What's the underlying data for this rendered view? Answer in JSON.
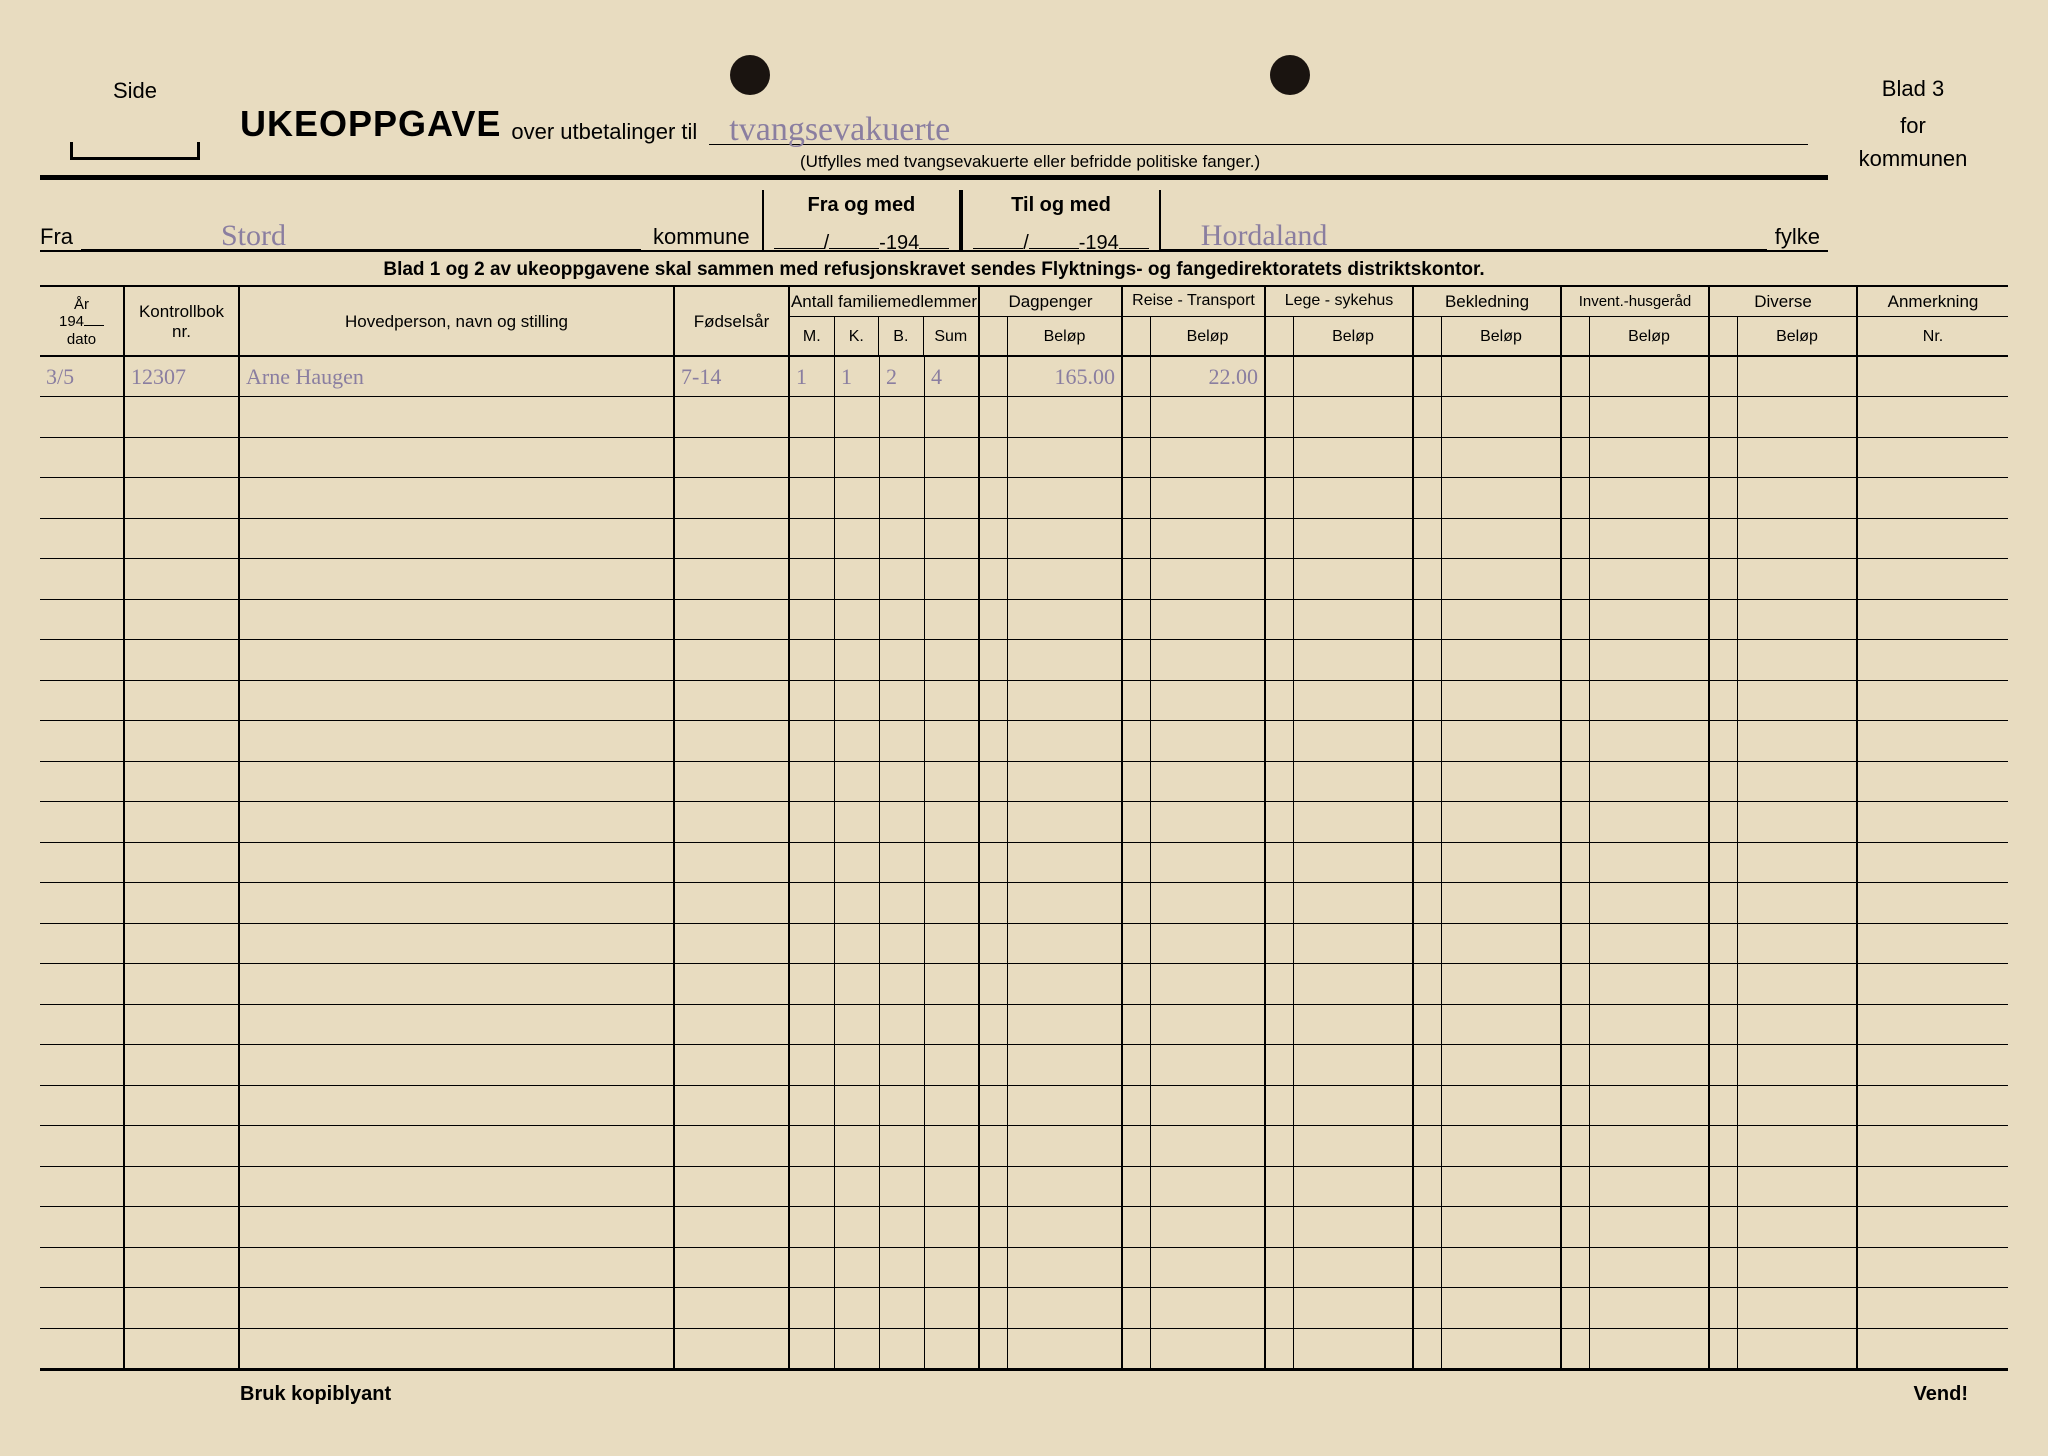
{
  "page": {
    "background_color": "#e8dcc0",
    "handwriting_color": "#8a7ea0",
    "line_color": "#000000"
  },
  "corners": {
    "side_label": "Side",
    "blad_line1": "Blad 3",
    "blad_line2": "for",
    "blad_line3": "kommunen"
  },
  "title": {
    "bold": "UKEOPPGAVE",
    "rest": "over utbetalinger til",
    "handwritten": "tvangsevakuerte",
    "sub_instruction": "(Utfylles med tvangsevakuerte eller befridde politiske fanger.)"
  },
  "meta": {
    "fra_label": "Fra",
    "fra_value": "Stord",
    "kommune_label": "kommune",
    "fra_og_med": "Fra og med",
    "til_og_med": "Til og med",
    "date_template_prefix": "-194",
    "fylke_value": "Hordaland",
    "fylke_label": "fylke"
  },
  "instruction_band": "Blad 1 og 2 av ukeoppgavene skal sammen med refusjonskravet sendes Flyktnings- og fangedirektoratets distriktskontor.",
  "columns": {
    "ar": {
      "l1": "År",
      "l2": "194",
      "l3": "dato"
    },
    "kontrollbok": {
      "l1": "Kontrollbok",
      "l2": "nr."
    },
    "hovedperson": "Hovedperson, navn og stilling",
    "fodselsar": "Fødselsår",
    "familie": {
      "group": "Antall familiemedlemmer",
      "m": "M.",
      "k": "K.",
      "b": "B.",
      "sum": "Sum"
    },
    "dagpenger": {
      "group": "Dagpenger",
      "sub": "Beløp"
    },
    "reise": {
      "group": "Reise - Transport",
      "sub": "Beløp"
    },
    "lege": {
      "group": "Lege - sykehus",
      "sub": "Beløp"
    },
    "bekledning": {
      "group": "Bekledning",
      "sub": "Beløp"
    },
    "invent": {
      "group": "Invent.-husgeråd",
      "sub": "Beløp"
    },
    "diverse": {
      "group": "Diverse",
      "sub": "Beløp"
    },
    "anmerkning": {
      "group": "Anmerkning",
      "sub": "Nr."
    }
  },
  "rows": [
    {
      "dato": "3/5",
      "kontrollbok": "12307",
      "hovedperson": "Arne Haugen",
      "fodselsar": "7-14",
      "m": "1",
      "k": "1",
      "b": "2",
      "sum": "4",
      "dagpenger": "165.00",
      "reise": "22.00",
      "lege": "",
      "bekledning": "",
      "invent": "",
      "diverse": "",
      "anmerkning": ""
    }
  ],
  "blank_row_count": 24,
  "footer": {
    "left": "Bruk kopiblyant",
    "right": "Vend!"
  }
}
